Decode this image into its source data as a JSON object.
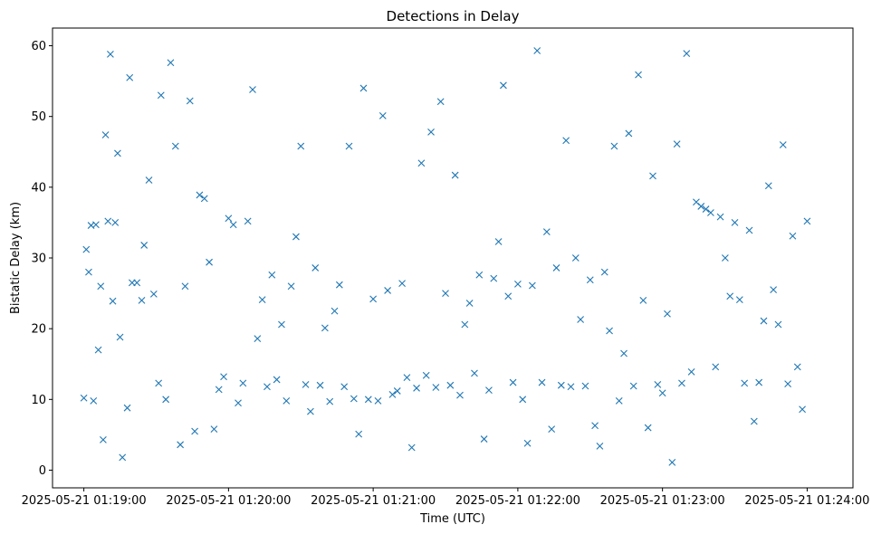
{
  "chart_data": {
    "type": "scatter",
    "title": "Detections in Delay",
    "xlabel": "Time (UTC)",
    "ylabel": "Bistatic Delay (km)",
    "x_ticks": [
      "2025-05-21 01:19:00",
      "2025-05-21 01:20:00",
      "2025-05-21 01:21:00",
      "2025-05-21 01:22:00",
      "2025-05-21 01:23:00",
      "2025-05-21 01:24:00"
    ],
    "y_ticks": [
      "0",
      "10",
      "20",
      "30",
      "40",
      "50",
      "60"
    ],
    "xlim": [
      "2025-05-21 01:18:47",
      "2025-05-21 01:24:19"
    ],
    "ylim": [
      -2.5,
      62.5
    ],
    "marker": "x",
    "color": "#1f77b4",
    "grid": false,
    "series": [
      {
        "points_seconds_after_01_19_00": [],
        "x": [
          "01:19:00",
          "01:19:01",
          "01:19:02",
          "01:19:03",
          "01:19:04",
          "01:19:05",
          "01:19:06",
          "01:19:07",
          "01:19:08",
          "01:19:09",
          "01:19:10",
          "01:19:11",
          "01:19:12",
          "01:19:13",
          "01:19:14",
          "01:19:15",
          "01:19:16",
          "01:19:18",
          "01:19:19",
          "01:19:20",
          "01:19:22",
          "01:19:24",
          "01:19:25",
          "01:19:27",
          "01:19:29",
          "01:19:31",
          "01:19:32",
          "01:19:34",
          "01:19:36",
          "01:19:38",
          "01:19:40",
          "01:19:42",
          "01:19:44",
          "01:19:46",
          "01:19:48",
          "01:19:50",
          "01:19:52",
          "01:19:54",
          "01:19:56",
          "01:19:58",
          "01:20:00",
          "01:20:02",
          "01:20:04",
          "01:20:06",
          "01:20:08",
          "01:20:10",
          "01:20:12",
          "01:20:14",
          "01:20:16",
          "01:20:18",
          "01:20:20",
          "01:20:22",
          "01:20:24",
          "01:20:26",
          "01:20:28",
          "01:20:30",
          "01:20:32",
          "01:20:34",
          "01:20:36",
          "01:20:38",
          "01:20:40",
          "01:20:42",
          "01:20:44",
          "01:20:46",
          "01:20:48",
          "01:20:50",
          "01:20:52",
          "01:20:54",
          "01:20:56",
          "01:20:58",
          "01:21:00",
          "01:21:02",
          "01:21:04",
          "01:21:06",
          "01:21:08",
          "01:21:10",
          "01:21:12",
          "01:21:14",
          "01:21:16",
          "01:21:18",
          "01:21:20",
          "01:21:22",
          "01:21:24",
          "01:21:26",
          "01:21:28",
          "01:21:30",
          "01:21:32",
          "01:21:34",
          "01:21:36",
          "01:21:38",
          "01:21:40",
          "01:21:42",
          "01:21:44",
          "01:21:46",
          "01:21:48",
          "01:21:50",
          "01:21:52",
          "01:21:54",
          "01:21:56",
          "01:21:58",
          "01:22:00",
          "01:22:02",
          "01:22:04",
          "01:22:06",
          "01:22:08",
          "01:22:10",
          "01:22:12",
          "01:22:14",
          "01:22:16",
          "01:22:18",
          "01:22:20",
          "01:22:22",
          "01:22:24",
          "01:22:26",
          "01:22:28",
          "01:22:30",
          "01:22:32",
          "01:22:34",
          "01:22:36",
          "01:22:38",
          "01:22:40",
          "01:22:42",
          "01:22:44",
          "01:22:46",
          "01:22:48",
          "01:22:50",
          "01:22:52",
          "01:22:54",
          "01:22:56",
          "01:22:58",
          "01:23:00",
          "01:23:02",
          "01:23:04",
          "01:23:06",
          "01:23:08",
          "01:23:10",
          "01:23:12",
          "01:23:14",
          "01:23:16",
          "01:23:18",
          "01:23:20",
          "01:23:22",
          "01:23:24",
          "01:23:26",
          "01:23:28",
          "01:23:30",
          "01:23:32",
          "01:23:34",
          "01:23:36",
          "01:23:38",
          "01:23:40",
          "01:23:42",
          "01:23:44",
          "01:23:46",
          "01:23:48",
          "01:23:50",
          "01:23:52",
          "01:23:54",
          "01:23:56",
          "01:23:58",
          "01:24:00"
        ],
        "y": [
          10.2,
          31.2,
          28.0,
          34.6,
          9.8,
          34.7,
          17.0,
          26.0,
          4.3,
          47.4,
          35.2,
          58.8,
          23.9,
          35.0,
          44.8,
          18.8,
          1.8,
          8.8,
          55.5,
          26.5,
          26.5,
          24.0,
          31.8,
          41.0,
          24.9,
          12.3,
          53.0,
          10.0,
          57.6,
          45.8,
          3.6,
          26.0,
          52.2,
          5.5,
          38.9,
          38.4,
          29.4,
          5.8,
          11.4,
          13.2,
          35.6,
          34.7,
          9.5,
          12.3,
          35.2,
          53.8,
          18.6,
          24.1,
          11.8,
          27.6,
          12.8,
          20.6,
          9.8,
          26.0,
          33.0,
          45.8,
          12.1,
          8.3,
          28.6,
          12.0,
          20.1,
          9.7,
          22.5,
          26.2,
          11.8,
          45.8,
          10.1,
          5.1,
          54.0,
          10.0,
          24.2,
          9.8,
          50.1,
          25.4,
          10.7,
          11.2,
          26.4,
          13.1,
          3.2,
          11.6,
          43.4,
          13.4,
          47.8,
          11.7,
          52.1,
          25.0,
          12.0,
          41.7,
          10.6,
          20.6,
          23.6,
          13.7,
          27.6,
          4.4,
          11.3,
          27.1,
          32.3,
          54.4,
          24.6,
          12.4,
          26.3,
          10.0,
          3.8,
          26.1,
          59.3,
          12.4,
          33.7,
          5.8,
          28.6,
          12.0,
          46.6,
          11.8,
          30.0,
          21.3,
          11.9,
          26.9,
          6.3,
          3.4,
          28.0,
          19.7,
          45.8,
          9.8,
          16.5,
          47.6,
          11.9,
          55.9,
          24.0,
          6.0,
          41.6,
          12.1,
          10.9,
          22.1,
          1.1,
          46.1,
          12.3,
          58.9,
          13.9,
          37.9,
          37.3,
          36.9,
          36.4,
          14.6,
          35.8,
          30.0,
          24.6,
          35.0,
          24.1,
          12.3,
          33.9,
          6.9,
          12.4,
          21.1,
          40.2,
          25.5,
          20.6,
          46.0,
          12.2,
          33.1,
          14.6,
          8.6,
          35.2
        ]
      }
    ]
  }
}
